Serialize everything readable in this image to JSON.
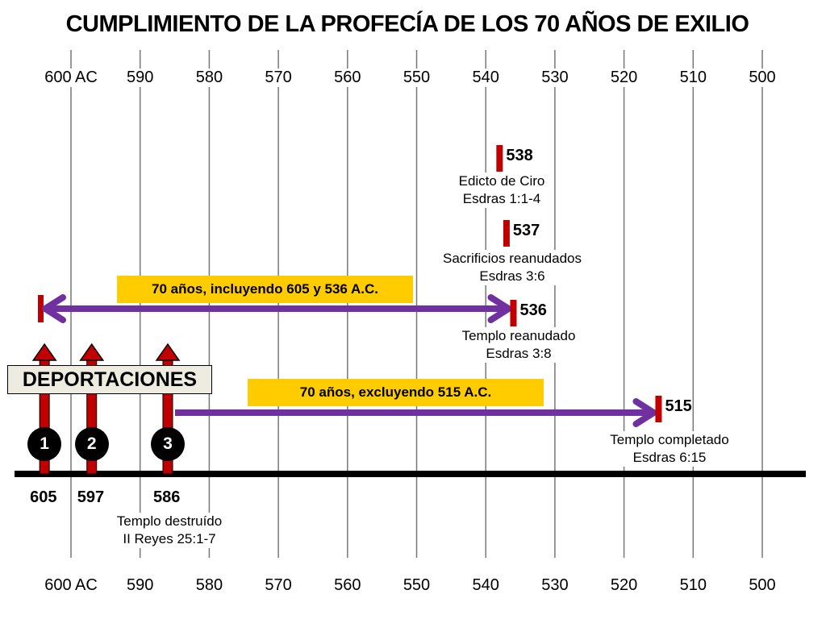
{
  "title": "CUMPLIMIENTO DE LA PROFECÍA DE LOS 70 AÑOS DE EXILIO",
  "axis": {
    "ticks": [
      {
        "year": 600,
        "label": "600 AC"
      },
      {
        "year": 590,
        "label": "590"
      },
      {
        "year": 580,
        "label": "580"
      },
      {
        "year": 570,
        "label": "570"
      },
      {
        "year": 560,
        "label": "560"
      },
      {
        "year": 550,
        "label": "550"
      },
      {
        "year": 540,
        "label": "540"
      },
      {
        "year": 530,
        "label": "530"
      },
      {
        "year": 520,
        "label": "520"
      },
      {
        "year": 510,
        "label": "510"
      },
      {
        "year": 500,
        "label": "500"
      }
    ]
  },
  "deportations": {
    "label": "DEPORTACIONES",
    "items": [
      {
        "year": 605,
        "number": "1",
        "label": "605"
      },
      {
        "year": 597,
        "number": "2",
        "label": "597"
      },
      {
        "year": 586,
        "number": "3",
        "label": "586"
      }
    ],
    "note": [
      "Templo destruído",
      "II Reyes 25:1-7"
    ]
  },
  "events": [
    {
      "year": 538,
      "label": "538",
      "lines": [
        "Edicto de Ciro",
        "Esdras 1:1-4"
      ]
    },
    {
      "year": 537,
      "label": "537",
      "lines": [
        "Sacrificios reanudados",
        "Esdras 3:6"
      ]
    },
    {
      "year": 536,
      "label": "536",
      "lines": [
        "Templo reanudado",
        "Esdras 3:8"
      ]
    },
    {
      "year": 515,
      "label": "515",
      "lines": [
        "Templo completado",
        "Esdras 6:15"
      ]
    }
  ],
  "spans": [
    {
      "from": 605,
      "to": 536,
      "label": "70 años, incluyendo 605 y 536 A.C."
    },
    {
      "from": 586,
      "to": 515,
      "label": "70 años, excluyendo 515 A.C."
    }
  ],
  "colors": {
    "marker": "#c00000",
    "arrow": "#7030a0",
    "band": "#ffcc00",
    "grid": "#777777"
  }
}
